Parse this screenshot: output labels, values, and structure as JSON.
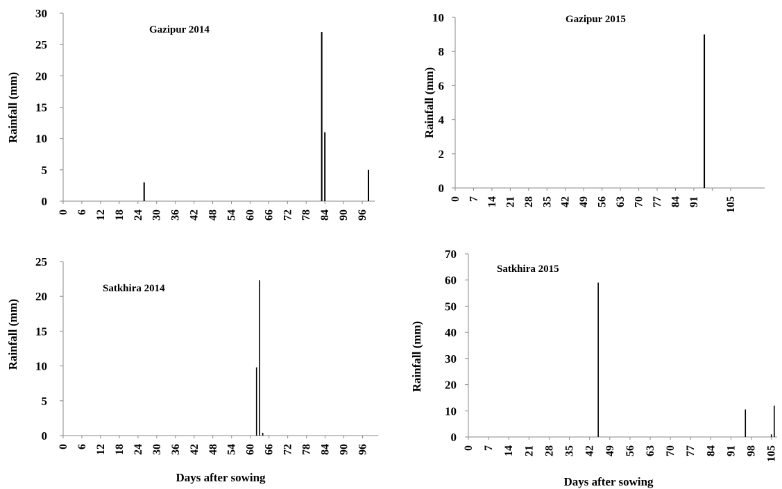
{
  "chart_data": [
    {
      "type": "bar",
      "title": "Gazipur 2014",
      "xlabel": "",
      "ylabel": "Rainfall (mm)",
      "xlim": [
        0,
        100
      ],
      "ylim": [
        0,
        30
      ],
      "yticks": [
        0,
        5,
        10,
        15,
        20,
        25,
        30
      ],
      "xticks": [
        0,
        6,
        12,
        18,
        24,
        30,
        36,
        42,
        48,
        54,
        60,
        66,
        72,
        78,
        84,
        90,
        96
      ],
      "tick_labels_x": [
        "0",
        "6",
        "12",
        "18",
        "24",
        "30",
        "36",
        "42",
        "48",
        "54",
        "60",
        "66",
        "72",
        "78",
        "84",
        "90",
        "96"
      ],
      "tick_labels_y": [
        "0",
        "5",
        "10",
        "15",
        "20",
        "25",
        "30"
      ],
      "grid": false,
      "legend": "none",
      "color": "#000000",
      "bars": [
        {
          "x": 26,
          "value": 3
        },
        {
          "x": 83,
          "value": 27
        },
        {
          "x": 84,
          "value": 11
        },
        {
          "x": 98,
          "value": 5
        }
      ]
    },
    {
      "type": "bar",
      "title": "Gazipur 2015",
      "xlabel": "",
      "ylabel": "Rainfall (mm)",
      "xlim": [
        0,
        118
      ],
      "ylim": [
        0,
        10
      ],
      "yticks": [
        0,
        2,
        4,
        6,
        8,
        10
      ],
      "xticks": [
        0,
        7,
        14,
        21,
        28,
        35,
        42,
        49,
        56,
        63,
        70,
        77,
        84,
        91,
        98,
        105
      ],
      "tick_labels_x": [
        "0",
        "7",
        "14",
        "21",
        "28",
        "35",
        "42",
        "49",
        "56",
        "63",
        "70",
        "77",
        "84",
        "91",
        "105"
      ],
      "tick_label_positions_x": [
        0,
        7,
        14,
        21,
        28,
        35,
        42,
        49,
        56,
        63,
        70,
        77,
        84,
        91,
        105
      ],
      "tick_labels_y": [
        "0",
        "2",
        "4",
        "6",
        "8",
        "10"
      ],
      "grid": false,
      "legend": "none",
      "color": "#000000",
      "bars": [
        {
          "x": 95,
          "value": 9
        }
      ]
    },
    {
      "type": "bar",
      "title": "Satkhira 2014",
      "xlabel": "Days after sowing",
      "ylabel": "Rainfall (mm)",
      "xlim": [
        0,
        101
      ],
      "ylim": [
        0,
        25
      ],
      "yticks": [
        0,
        5,
        10,
        15,
        20,
        25
      ],
      "xticks": [
        0,
        6,
        12,
        18,
        24,
        30,
        36,
        42,
        48,
        54,
        60,
        66,
        72,
        78,
        84,
        90,
        96
      ],
      "tick_labels_x": [
        "0",
        "6",
        "12",
        "18",
        "24",
        "30",
        "36",
        "42",
        "48",
        "54",
        "60",
        "66",
        "72",
        "78",
        "84",
        "90",
        "96"
      ],
      "tick_labels_y": [
        "0",
        "5",
        "10",
        "15",
        "20",
        "25"
      ],
      "grid": false,
      "legend": "none",
      "color": "#000000",
      "bars": [
        {
          "x": 62,
          "value": 9.8
        },
        {
          "x": 63,
          "value": 22.3
        },
        {
          "x": 64,
          "value": 0.4
        }
      ]
    },
    {
      "type": "bar",
      "title": "Satkhira 2015",
      "xlabel": "Days after sowing",
      "ylabel": "Rainfall (mm)",
      "xlim": [
        0,
        107
      ],
      "ylim": [
        0,
        70
      ],
      "yticks": [
        0,
        10,
        20,
        30,
        40,
        50,
        60,
        70
      ],
      "xticks": [
        0,
        7,
        14,
        21,
        28,
        35,
        42,
        49,
        56,
        63,
        70,
        77,
        84,
        91,
        98,
        105
      ],
      "tick_labels_x": [
        "0",
        "7",
        "14",
        "21",
        "28",
        "35",
        "42",
        "49",
        "56",
        "63",
        "70",
        "77",
        "84",
        "91",
        "98",
        "105"
      ],
      "tick_labels_y": [
        "0",
        "10",
        "20",
        "30",
        "40",
        "50",
        "60",
        "70"
      ],
      "grid": false,
      "legend": "none",
      "color": "#000000",
      "bars": [
        {
          "x": 45,
          "value": 59
        },
        {
          "x": 96,
          "value": 10.5
        },
        {
          "x": 105,
          "value": 1
        },
        {
          "x": 106,
          "value": 12
        }
      ]
    }
  ]
}
